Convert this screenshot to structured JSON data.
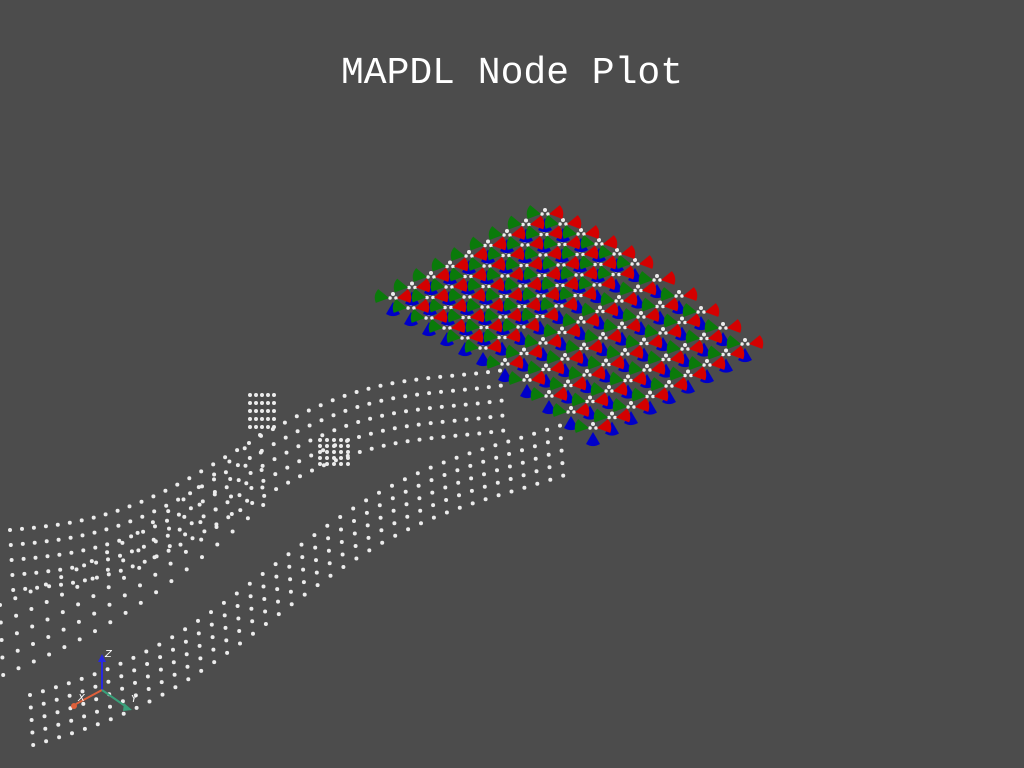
{
  "plot": {
    "title": "MAPDL Node Plot",
    "background": "#4c4c4c",
    "node_color": "#ececec",
    "constraint_colors": {
      "x": "#d40000",
      "y": "#0a7a0a",
      "z": "#0000c8"
    }
  },
  "axes": {
    "x_label": "X",
    "y_label": "Y",
    "z_label": "Z",
    "x_color": "#e0603a",
    "y_color": "#3aa07a",
    "z_color": "#2828e0"
  }
}
